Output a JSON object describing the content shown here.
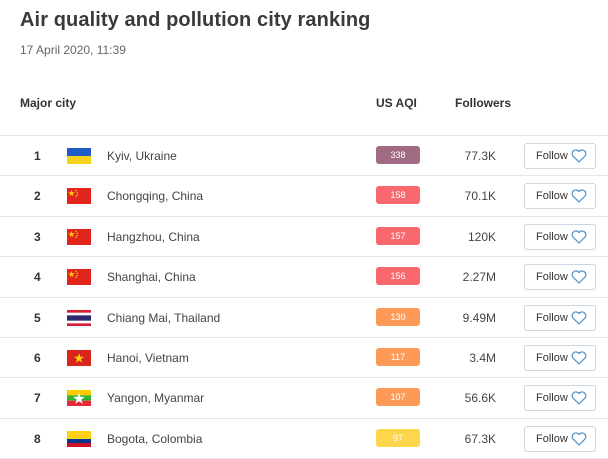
{
  "page": {
    "title": "Air quality and pollution city ranking",
    "date": "17 April 2020, 11:39"
  },
  "table": {
    "columns": {
      "city": "Major city",
      "aqi": "US AQI",
      "followers": "Followers"
    },
    "follow_label": "Follow",
    "rows": [
      {
        "rank": "1",
        "city": "Kyiv, Ukraine",
        "aqi": "338",
        "aqi_color": "#a06a82",
        "followers": "77.3K",
        "flag": "ukraine"
      },
      {
        "rank": "2",
        "city": "Chongqing, China",
        "aqi": "158",
        "aqi_color": "#f8686e",
        "followers": "70.1K",
        "flag": "china"
      },
      {
        "rank": "3",
        "city": "Hangzhou, China",
        "aqi": "157",
        "aqi_color": "#f8686e",
        "followers": "120K",
        "flag": "china"
      },
      {
        "rank": "4",
        "city": "Shanghai, China",
        "aqi": "156",
        "aqi_color": "#f8686e",
        "followers": "2.27M",
        "flag": "china"
      },
      {
        "rank": "5",
        "city": "Chiang Mai, Thailand",
        "aqi": "130",
        "aqi_color": "#fd9a57",
        "followers": "9.49M",
        "flag": "thailand"
      },
      {
        "rank": "6",
        "city": "Hanoi, Vietnam",
        "aqi": "117",
        "aqi_color": "#fd9a57",
        "followers": "3.4M",
        "flag": "vietnam"
      },
      {
        "rank": "7",
        "city": "Yangon, Myanmar",
        "aqi": "107",
        "aqi_color": "#fd9a57",
        "followers": "56.6K",
        "flag": "myanmar"
      },
      {
        "rank": "8",
        "city": "Bogota, Colombia",
        "aqi": "97",
        "aqi_color": "#fdd64b",
        "followers": "67.3K",
        "flag": "colombia"
      }
    ]
  }
}
